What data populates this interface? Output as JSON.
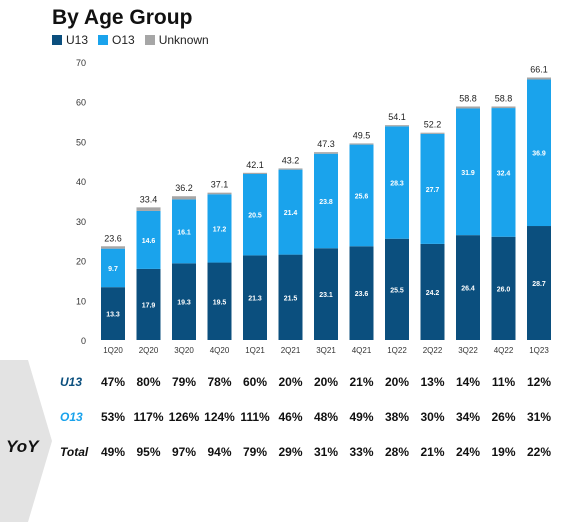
{
  "title": "By Age Group",
  "legend": [
    {
      "label": "U13",
      "color": "#0b4f7e"
    },
    {
      "label": "O13",
      "color": "#1aa3ec"
    },
    {
      "label": "Unknown",
      "color": "#a6a6a6"
    }
  ],
  "chart_data": {
    "type": "bar",
    "stacked": true,
    "categories": [
      "1Q20",
      "2Q20",
      "3Q20",
      "4Q20",
      "1Q21",
      "2Q21",
      "3Q21",
      "4Q21",
      "1Q22",
      "2Q22",
      "3Q22",
      "4Q22",
      "1Q23"
    ],
    "series": [
      {
        "name": "U13",
        "values": [
          13.3,
          17.9,
          19.3,
          19.5,
          21.3,
          21.5,
          23.1,
          23.6,
          25.5,
          24.2,
          26.4,
          26.0,
          28.7
        ]
      },
      {
        "name": "O13",
        "values": [
          9.7,
          14.6,
          16.1,
          17.2,
          20.5,
          21.4,
          23.8,
          25.6,
          28.3,
          27.7,
          31.9,
          32.4,
          36.9
        ]
      },
      {
        "name": "Unknown",
        "values": [
          0.6,
          0.9,
          0.8,
          0.4,
          0.3,
          0.3,
          0.4,
          0.3,
          0.3,
          0.3,
          0.5,
          0.4,
          0.5
        ]
      }
    ],
    "totals": [
      "23.6",
      "33.4",
      "36.2",
      "37.1",
      "42.1",
      "43.2",
      "47.3",
      "49.5",
      "54.1",
      "52.2",
      "58.8",
      "58.8",
      "66.1"
    ],
    "ylim": [
      0,
      70
    ],
    "yticks": [
      "0",
      "10",
      "20",
      "30",
      "40",
      "50",
      "60",
      "70"
    ],
    "grid": false,
    "legend_position": "top-left"
  },
  "yoy": {
    "label": "YoY",
    "rows": [
      {
        "label": "U13",
        "color": "#0b4f7e",
        "values": [
          "47%",
          "80%",
          "79%",
          "78%",
          "60%",
          "20%",
          "20%",
          "21%",
          "20%",
          "13%",
          "14%",
          "11%",
          "12%"
        ]
      },
      {
        "label": "O13",
        "color": "#1aa3ec",
        "values": [
          "53%",
          "117%",
          "126%",
          "124%",
          "111%",
          "46%",
          "48%",
          "49%",
          "38%",
          "30%",
          "34%",
          "26%",
          "31%"
        ]
      },
      {
        "label": "Total",
        "color": "#111111",
        "values": [
          "49%",
          "95%",
          "97%",
          "94%",
          "79%",
          "29%",
          "31%",
          "33%",
          "28%",
          "21%",
          "24%",
          "19%",
          "22%"
        ]
      }
    ]
  }
}
